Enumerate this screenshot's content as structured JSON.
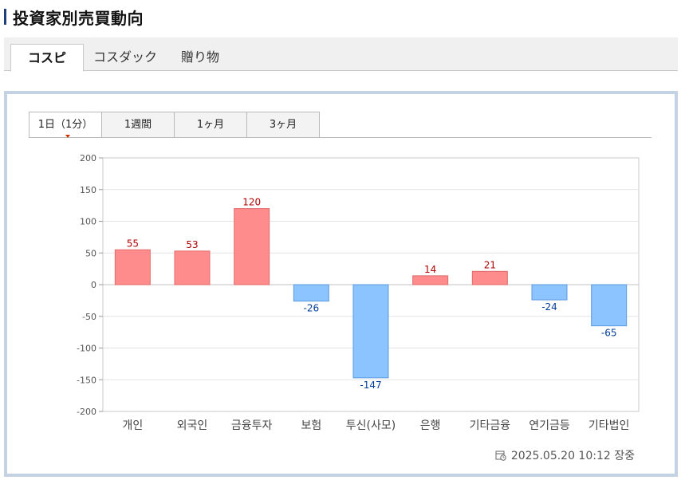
{
  "page": {
    "title": "投資家別売買動向"
  },
  "main_tabs": [
    {
      "label": "コスピ",
      "active": true
    },
    {
      "label": "コスダック",
      "active": false
    },
    {
      "label": "贈り物",
      "active": false
    }
  ],
  "period_tabs": [
    {
      "label": "1日（1分）",
      "active": true
    },
    {
      "label": "1週間",
      "active": false
    },
    {
      "label": "1ヶ月",
      "active": false
    },
    {
      "label": "3ヶ月",
      "active": false
    }
  ],
  "timestamp": "2025.05.20 10:12 장중",
  "colors": {
    "positive_fill": "#ff8c8c",
    "positive_stroke": "#e06a6a",
    "positive_label": "#b00000",
    "negative_fill": "#8cc4ff",
    "negative_stroke": "#5a9ae0",
    "negative_label": "#003d99",
    "panel_border": "#c3d3e4",
    "title_bar": "#1f3f7a"
  },
  "chart_data": {
    "type": "bar",
    "categories": [
      "개인",
      "외국인",
      "금융투자",
      "보험",
      "투신(사모)",
      "은행",
      "기타금융",
      "연기금등",
      "기타법인"
    ],
    "values": [
      55,
      53,
      120,
      -26,
      -147,
      14,
      21,
      -24,
      -65
    ],
    "ylim": [
      -200,
      200
    ],
    "yticks": [
      200,
      150,
      100,
      50,
      0,
      -50,
      -100,
      -150,
      -200
    ],
    "grid": true,
    "legend": "none"
  }
}
